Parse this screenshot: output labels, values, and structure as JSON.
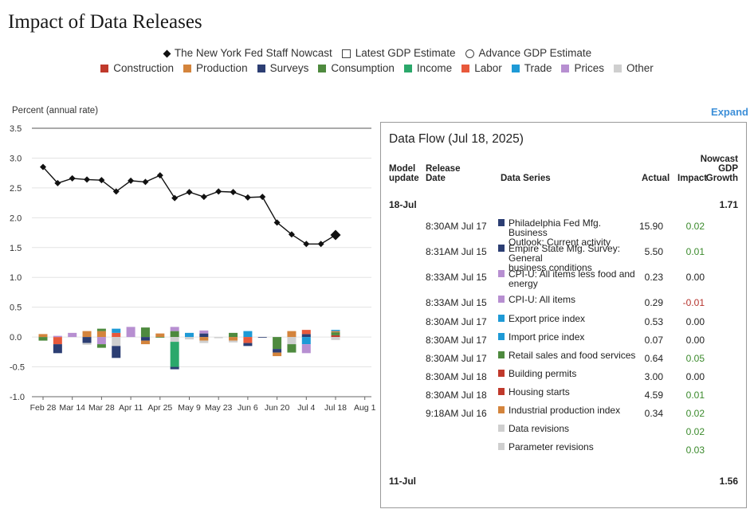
{
  "title": "Impact of Data Releases",
  "legend": {
    "lines": [
      {
        "label": "The New York Fed Staff Nowcast",
        "icon": "diamond-icon"
      },
      {
        "label": "Latest GDP Estimate",
        "icon": "square-outline-icon"
      },
      {
        "label": "Advance GDP Estimate",
        "icon": "circle-outline-icon"
      }
    ],
    "categories": [
      {
        "label": "Construction",
        "color": "#c0392b"
      },
      {
        "label": "Production",
        "color": "#d4843c"
      },
      {
        "label": "Surveys",
        "color": "#2c3e73"
      },
      {
        "label": "Consumption",
        "color": "#4e8a3e"
      },
      {
        "label": "Income",
        "color": "#2ba86b"
      },
      {
        "label": "Labor",
        "color": "#e8593b"
      },
      {
        "label": "Trade",
        "color": "#1e9ad6"
      },
      {
        "label": "Prices",
        "color": "#b78fd1"
      },
      {
        "label": "Other",
        "color": "#cfcfcf"
      }
    ]
  },
  "expand_label": "Expand",
  "chart_data": {
    "type": "bar",
    "title": "Impact of Data Releases",
    "ylabel": "Percent (annual rate)",
    "xlabel": "",
    "ylim": [
      -1.0,
      3.5
    ],
    "yticks": [
      3.5,
      3.0,
      2.5,
      2.0,
      1.5,
      1.0,
      0.5,
      0.0,
      -0.5,
      -1.0
    ],
    "ytick_labels": [
      "3.5",
      "3.0",
      "2.5",
      "2.0",
      "1.5",
      "1.0",
      "0.5",
      "0.0",
      "-0.5",
      "-1.0"
    ],
    "xtick_labels": [
      "Feb 28",
      "Mar 14",
      "Mar 28",
      "Apr 11",
      "Apr 25",
      "May 9",
      "May 23",
      "Jun 6",
      "Jun 20",
      "Jul 4",
      "Jul 18",
      "Aug 1"
    ],
    "nowcast": {
      "name": "The New York Fed Staff Nowcast",
      "x": [
        0,
        1,
        2,
        3,
        4,
        5,
        6,
        7,
        8,
        9,
        10,
        11,
        12,
        13,
        14,
        15,
        16,
        17,
        18,
        19,
        20
      ],
      "values": [
        2.85,
        2.58,
        2.66,
        2.64,
        2.63,
        2.44,
        2.62,
        2.6,
        2.71,
        2.33,
        2.43,
        2.35,
        2.44,
        2.43,
        2.34,
        2.35,
        1.92,
        1.72,
        1.56,
        1.56,
        1.71
      ]
    },
    "bars": [
      {
        "x": 0,
        "segments": [
          {
            "cat": "Production",
            "value": 0.05
          },
          {
            "cat": "Consumption",
            "value": -0.06
          }
        ]
      },
      {
        "x": 1,
        "segments": [
          {
            "cat": "Labor",
            "value": -0.12
          },
          {
            "cat": "Surveys",
            "value": -0.15
          },
          {
            "cat": "Prices",
            "value": 0.02
          }
        ]
      },
      {
        "x": 2,
        "segments": [
          {
            "cat": "Prices",
            "value": 0.07
          }
        ]
      },
      {
        "x": 3,
        "segments": [
          {
            "cat": "Production",
            "value": 0.1
          },
          {
            "cat": "Surveys",
            "value": -0.1
          },
          {
            "cat": "Other",
            "value": -0.03
          }
        ]
      },
      {
        "x": 4,
        "segments": [
          {
            "cat": "Production",
            "value": 0.1
          },
          {
            "cat": "Consumption",
            "value": 0.04
          },
          {
            "cat": "Prices",
            "value": -0.12
          },
          {
            "cat": "Consumption",
            "value": -0.06
          }
        ]
      },
      {
        "x": 5,
        "segments": [
          {
            "cat": "Labor",
            "value": 0.07
          },
          {
            "cat": "Trade",
            "value": 0.07
          },
          {
            "cat": "Other",
            "value": -0.15
          },
          {
            "cat": "Surveys",
            "value": -0.2
          }
        ]
      },
      {
        "x": 6,
        "segments": [
          {
            "cat": "Prices",
            "value": 0.17
          }
        ]
      },
      {
        "x": 7,
        "segments": [
          {
            "cat": "Consumption",
            "value": 0.16
          },
          {
            "cat": "Surveys",
            "value": -0.06
          },
          {
            "cat": "Production",
            "value": -0.06
          }
        ]
      },
      {
        "x": 8,
        "segments": [
          {
            "cat": "Production",
            "value": 0.06
          },
          {
            "cat": "Consumption",
            "value": -0.01
          }
        ]
      },
      {
        "x": 9,
        "segments": [
          {
            "cat": "Consumption",
            "value": 0.1
          },
          {
            "cat": "Prices",
            "value": 0.07
          },
          {
            "cat": "Other",
            "value": -0.08
          },
          {
            "cat": "Income",
            "value": -0.42
          },
          {
            "cat": "Surveys",
            "value": -0.04
          }
        ]
      },
      {
        "x": 10,
        "segments": [
          {
            "cat": "Trade",
            "value": 0.07
          },
          {
            "cat": "Other",
            "value": -0.04
          }
        ]
      },
      {
        "x": 11,
        "segments": [
          {
            "cat": "Surveys",
            "value": 0.06
          },
          {
            "cat": "Prices",
            "value": 0.05
          },
          {
            "cat": "Production",
            "value": -0.06
          },
          {
            "cat": "Other",
            "value": -0.04
          }
        ]
      },
      {
        "x": 12,
        "segments": [
          {
            "cat": "Other",
            "value": -0.02
          }
        ]
      },
      {
        "x": 13,
        "segments": [
          {
            "cat": "Consumption",
            "value": 0.07
          },
          {
            "cat": "Production",
            "value": -0.06
          },
          {
            "cat": "Other",
            "value": -0.03
          }
        ]
      },
      {
        "x": 14,
        "segments": [
          {
            "cat": "Trade",
            "value": 0.1
          },
          {
            "cat": "Labor",
            "value": -0.1
          },
          {
            "cat": "Surveys",
            "value": -0.05
          }
        ]
      },
      {
        "x": 15,
        "segments": [
          {
            "cat": "Surveys",
            "value": -0.01
          }
        ]
      },
      {
        "x": 16,
        "segments": [
          {
            "cat": "Consumption",
            "value": -0.2
          },
          {
            "cat": "Surveys",
            "value": -0.06
          },
          {
            "cat": "Production",
            "value": -0.06
          }
        ]
      },
      {
        "x": 17,
        "segments": [
          {
            "cat": "Production",
            "value": 0.1
          },
          {
            "cat": "Other",
            "value": -0.12
          },
          {
            "cat": "Consumption",
            "value": -0.14
          }
        ]
      },
      {
        "x": 18,
        "segments": [
          {
            "cat": "Surveys",
            "value": 0.05
          },
          {
            "cat": "Labor",
            "value": 0.07
          },
          {
            "cat": "Trade",
            "value": -0.12
          },
          {
            "cat": "Prices",
            "value": -0.15
          }
        ]
      },
      {
        "x": 20,
        "segments": [
          {
            "cat": "Construction",
            "value": 0.03
          },
          {
            "cat": "Consumption",
            "value": 0.05
          },
          {
            "cat": "Production",
            "value": 0.02
          },
          {
            "cat": "Trade",
            "value": 0.02
          },
          {
            "cat": "Other",
            "value": -0.05
          }
        ]
      }
    ]
  },
  "data_flow": {
    "title": "Data Flow (Jul 18, 2025)",
    "headers": {
      "model_update": [
        "Model",
        "update"
      ],
      "release_date": [
        "Release",
        "Date"
      ],
      "data_series": "Data Series",
      "actual": "Actual",
      "impact": "Impact",
      "nowcast": [
        "Nowcast",
        "GDP",
        "Growth"
      ]
    },
    "groups": [
      {
        "date": "18-Jul",
        "nowcast": "1.71"
      },
      {
        "date": "11-Jul",
        "nowcast": "1.56"
      }
    ],
    "rows": [
      {
        "release": "8:30AM Jul 17",
        "series_lines": [
          "Philadelphia Fed Mfg. Business",
          "Outlook: Current activity"
        ],
        "color": "#2c3e73",
        "actual": "15.90",
        "impact": "0.02",
        "sign": "pos"
      },
      {
        "release": "8:31AM Jul 15",
        "series_lines": [
          "Empire State Mfg. Survey: General",
          "business conditions"
        ],
        "color": "#2c3e73",
        "actual": "5.50",
        "impact": "0.01",
        "sign": "pos"
      },
      {
        "release": "8:33AM Jul 15",
        "series_lines": [
          "CPI-U: All items less food and",
          "energy"
        ],
        "color": "#b78fd1",
        "actual": "0.23",
        "impact": "0.00",
        "sign": "zero"
      },
      {
        "release": "8:33AM Jul 15",
        "series_lines": [
          "CPI-U: All items"
        ],
        "color": "#b78fd1",
        "actual": "0.29",
        "impact": "-0.01",
        "sign": "neg"
      },
      {
        "release": "8:30AM Jul 17",
        "series_lines": [
          "Export price index"
        ],
        "color": "#1e9ad6",
        "actual": "0.53",
        "impact": "0.00",
        "sign": "zero"
      },
      {
        "release": "8:30AM Jul 17",
        "series_lines": [
          "Import price index"
        ],
        "color": "#1e9ad6",
        "actual": "0.07",
        "impact": "0.00",
        "sign": "zero"
      },
      {
        "release": "8:30AM Jul 17",
        "series_lines": [
          "Retail sales and food services"
        ],
        "color": "#4e8a3e",
        "actual": "0.64",
        "impact": "0.05",
        "sign": "pos"
      },
      {
        "release": "8:30AM Jul 18",
        "series_lines": [
          "Building permits"
        ],
        "color": "#c0392b",
        "actual": "3.00",
        "impact": "0.00",
        "sign": "zero"
      },
      {
        "release": "8:30AM Jul 18",
        "series_lines": [
          "Housing starts"
        ],
        "color": "#c0392b",
        "actual": "4.59",
        "impact": "0.01",
        "sign": "pos"
      },
      {
        "release": "9:18AM Jul 16",
        "series_lines": [
          "Industrial production index"
        ],
        "color": "#d4843c",
        "actual": "0.34",
        "impact": "0.02",
        "sign": "pos"
      },
      {
        "release": "",
        "series_lines": [
          "Data revisions"
        ],
        "color": "#cfcfcf",
        "actual": "",
        "impact": "0.02",
        "sign": "pos"
      },
      {
        "release": "",
        "series_lines": [
          "Parameter revisions"
        ],
        "color": "#cfcfcf",
        "actual": "",
        "impact": "0.03",
        "sign": "pos"
      }
    ]
  }
}
